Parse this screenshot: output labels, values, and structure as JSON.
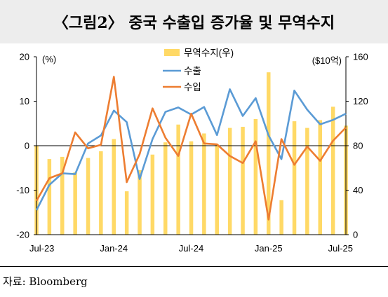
{
  "title": "〈그림2〉 중국 수출입 증가율 및 무역수지",
  "source": "자료: Bloomberg",
  "chart_data": {
    "type": "bar+line",
    "left_axis_unit": "(%)",
    "right_axis_unit": "($10억)",
    "left_ylim": [
      -20,
      20
    ],
    "left_ticks": [
      20,
      10,
      0,
      -10,
      -20
    ],
    "right_ylim": [
      0,
      160
    ],
    "right_ticks": [
      160,
      120,
      80,
      40,
      0
    ],
    "x_tick_labels": [
      "Jul-23",
      "Jan-24",
      "Jul-24",
      "Jan-25",
      "Jul-25"
    ],
    "months": [
      "2023-07",
      "2023-08",
      "2023-09",
      "2023-10",
      "2023-11",
      "2023-12",
      "2024-01",
      "2024-02",
      "2024-03",
      "2024-04",
      "2024-05",
      "2024-06",
      "2024-07",
      "2024-08",
      "2024-09",
      "2024-10",
      "2024-11",
      "2024-12",
      "2025-01",
      "2025-02",
      "2025-03",
      "2025-04",
      "2025-05",
      "2025-06",
      "2025-07"
    ],
    "grid": false,
    "legend_position": "top-center",
    "series": [
      {
        "name": "무역수지(우)",
        "type": "bar",
        "axis": "right",
        "color": "#FFD966",
        "values": [
          80,
          68,
          70,
          56,
          69,
          75,
          86,
          39,
          58,
          72,
          83,
          99,
          84,
          91,
          81,
          96,
          97,
          104,
          146,
          31,
          102,
          96,
          103,
          115,
          98
        ]
      },
      {
        "name": "수출",
        "type": "line",
        "axis": "left",
        "color": "#5B9BD5",
        "values": [
          -14.5,
          -8.8,
          -6.2,
          -6.4,
          0.5,
          2.3,
          7.9,
          5.3,
          -7.5,
          1.5,
          7.6,
          8.6,
          7.0,
          8.7,
          2.4,
          12.7,
          6.7,
          10.7,
          2.3,
          -3.0,
          12.4,
          8.1,
          4.8,
          5.8,
          7.2
        ]
      },
      {
        "name": "수입",
        "type": "line",
        "axis": "left",
        "color": "#ED7D31",
        "values": [
          -12.4,
          -7.3,
          -6.2,
          3.0,
          -0.6,
          0.2,
          15.5,
          -8.2,
          -1.9,
          8.4,
          1.8,
          -2.3,
          7.2,
          0.5,
          0.3,
          -2.3,
          -3.9,
          1.0,
          -16.6,
          1.5,
          -4.3,
          -0.2,
          -3.4,
          1.1,
          4.1
        ]
      }
    ]
  }
}
